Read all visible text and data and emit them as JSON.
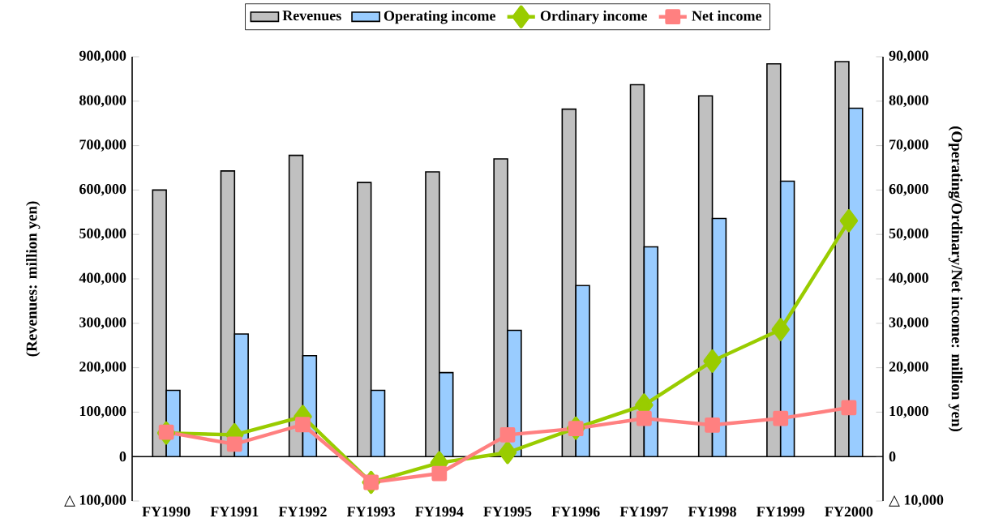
{
  "chart_data": {
    "type": "bar",
    "categories": [
      "FY1990",
      "FY1991",
      "FY1992",
      "FY1993",
      "FY1994",
      "FY1995",
      "FY1996",
      "FY1997",
      "FY1998",
      "FY1999",
      "FY2000"
    ],
    "series": [
      {
        "name": "Revenues",
        "color": "#c0c0c0",
        "values": [
          600000,
          643000,
          678000,
          617000,
          641000,
          670000,
          782000,
          837000,
          812000,
          884000,
          889000
        ]
      },
      {
        "name": "Operating income",
        "color": "#99ccff",
        "axis": "y2",
        "values": [
          14900,
          27600,
          22700,
          14900,
          18900,
          28400,
          38500,
          47200,
          53600,
          62000,
          78400
        ]
      },
      {
        "name": "Ordinary income",
        "type": "line",
        "marker": "diamond",
        "color": "#99cc00",
        "axis": "y2",
        "values": [
          5300,
          4900,
          9000,
          -5800,
          -1400,
          900,
          6400,
          11600,
          21500,
          28600,
          53100
        ]
      },
      {
        "name": "Net income",
        "type": "line",
        "marker": "square",
        "color": "#ff8080",
        "axis": "y2",
        "values": [
          5500,
          2800,
          7200,
          -5800,
          -3800,
          4900,
          6300,
          8600,
          7100,
          8600,
          11000
        ]
      }
    ],
    "ylabel": "(Revenues: million yen)",
    "y2label": "(Operating/Ordinary/Net income: million yen)",
    "ylim": [
      -100000,
      900000
    ],
    "yticks": [
      {
        "value": -100000,
        "label": "△ 100,000"
      },
      0,
      {
        "value": 100000,
        "label": "100,000"
      },
      {
        "value": 200000,
        "label": "200,000"
      },
      {
        "value": 300000,
        "label": "300,000"
      },
      {
        "value": 400000,
        "label": "400,000"
      },
      {
        "value": 500000,
        "label": "500,000"
      },
      {
        "value": 600000,
        "label": "600,000"
      },
      {
        "value": 700000,
        "label": "700,000"
      },
      {
        "value": 800000,
        "label": "800,000"
      },
      {
        "value": 900000,
        "label": "900,000"
      }
    ],
    "y2lim": [
      -10000,
      90000
    ],
    "y2ticks": [
      {
        "value": -10000,
        "label": "△ 10,000"
      },
      0,
      {
        "value": 10000,
        "label": "10,000"
      },
      {
        "value": 20000,
        "label": "20,000"
      },
      {
        "value": 30000,
        "label": "30,000"
      },
      {
        "value": 40000,
        "label": "40,000"
      },
      {
        "value": 50000,
        "label": "50,000"
      },
      {
        "value": 60000,
        "label": "60,000"
      },
      {
        "value": 70000,
        "label": "70,000"
      },
      {
        "value": 80000,
        "label": "80,000"
      },
      {
        "value": 90000,
        "label": "90,000"
      }
    ],
    "legend": "top"
  }
}
